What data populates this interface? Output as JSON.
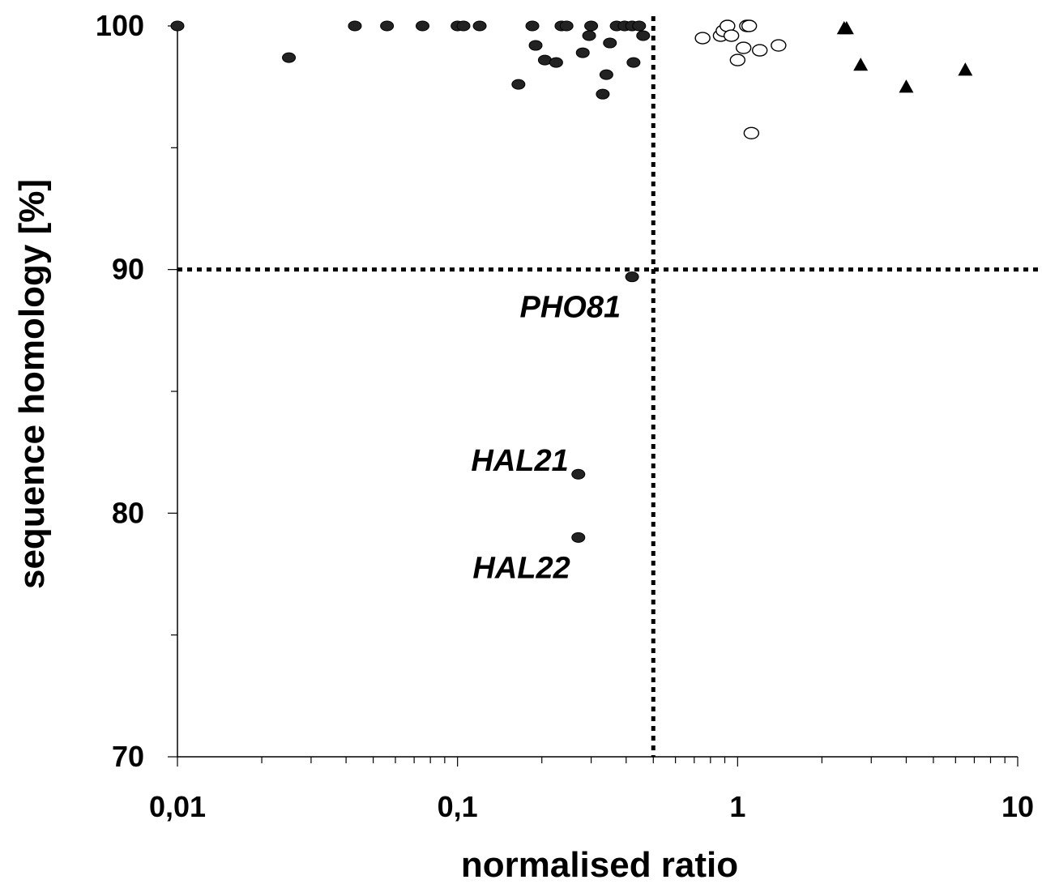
{
  "chart_data": {
    "type": "scatter",
    "xlabel": "normalised ratio",
    "ylabel": "sequence homology [%]",
    "xscale": "log",
    "xlim": [
      0.01,
      10
    ],
    "ylim": [
      70,
      100
    ],
    "x_tick_labels": [
      {
        "value": 0.01,
        "label": "0,01"
      },
      {
        "value": 0.1,
        "label": "0,1"
      },
      {
        "value": 1,
        "label": "1"
      },
      {
        "value": 10,
        "label": "10"
      }
    ],
    "y_tick_labels": [
      {
        "value": 70,
        "label": "70"
      },
      {
        "value": 80,
        "label": "80"
      },
      {
        "value": 90,
        "label": "90"
      },
      {
        "value": 100,
        "label": "100"
      }
    ],
    "y_minor_ticks": [
      75,
      85,
      95
    ],
    "reference_lines": {
      "x": 0.5,
      "y": 90
    },
    "series": [
      {
        "marker": "filled-circle",
        "points": [
          {
            "x": 0.01,
            "y": 100
          },
          {
            "x": 0.025,
            "y": 98.7
          },
          {
            "x": 0.043,
            "y": 100
          },
          {
            "x": 0.056,
            "y": 100
          },
          {
            "x": 0.075,
            "y": 100
          },
          {
            "x": 0.1,
            "y": 100
          },
          {
            "x": 0.105,
            "y": 100
          },
          {
            "x": 0.12,
            "y": 100
          },
          {
            "x": 0.165,
            "y": 97.6
          },
          {
            "x": 0.185,
            "y": 100
          },
          {
            "x": 0.19,
            "y": 99.2
          },
          {
            "x": 0.205,
            "y": 98.6
          },
          {
            "x": 0.225,
            "y": 98.5
          },
          {
            "x": 0.235,
            "y": 100
          },
          {
            "x": 0.245,
            "y": 100
          },
          {
            "x": 0.28,
            "y": 98.9
          },
          {
            "x": 0.295,
            "y": 99.6
          },
          {
            "x": 0.3,
            "y": 100
          },
          {
            "x": 0.33,
            "y": 97.2
          },
          {
            "x": 0.34,
            "y": 98
          },
          {
            "x": 0.35,
            "y": 99.3
          },
          {
            "x": 0.37,
            "y": 100
          },
          {
            "x": 0.395,
            "y": 100
          },
          {
            "x": 0.42,
            "y": 100
          },
          {
            "x": 0.425,
            "y": 98.5
          },
          {
            "x": 0.445,
            "y": 100
          },
          {
            "x": 0.46,
            "y": 99.6
          },
          {
            "x": 0.42,
            "y": 89.7,
            "label": "PHO81"
          },
          {
            "x": 0.27,
            "y": 81.6,
            "label": "HAL21"
          },
          {
            "x": 0.27,
            "y": 79,
            "label": "HAL22"
          }
        ]
      },
      {
        "marker": "open-circle",
        "points": [
          {
            "x": 0.75,
            "y": 99.5
          },
          {
            "x": 0.87,
            "y": 99.6
          },
          {
            "x": 0.89,
            "y": 99.8
          },
          {
            "x": 0.92,
            "y": 100
          },
          {
            "x": 0.95,
            "y": 99.6
          },
          {
            "x": 1.0,
            "y": 98.6
          },
          {
            "x": 1.05,
            "y": 99.1
          },
          {
            "x": 1.08,
            "y": 100
          },
          {
            "x": 1.1,
            "y": 100
          },
          {
            "x": 1.12,
            "y": 95.6
          },
          {
            "x": 1.2,
            "y": 99
          },
          {
            "x": 1.4,
            "y": 99.2
          }
        ]
      },
      {
        "marker": "filled-triangle",
        "points": [
          {
            "x": 2.4,
            "y": 99.9
          },
          {
            "x": 2.45,
            "y": 99.9
          },
          {
            "x": 2.75,
            "y": 98.4
          },
          {
            "x": 4.0,
            "y": 97.5
          },
          {
            "x": 6.5,
            "y": 98.2
          }
        ]
      }
    ]
  }
}
